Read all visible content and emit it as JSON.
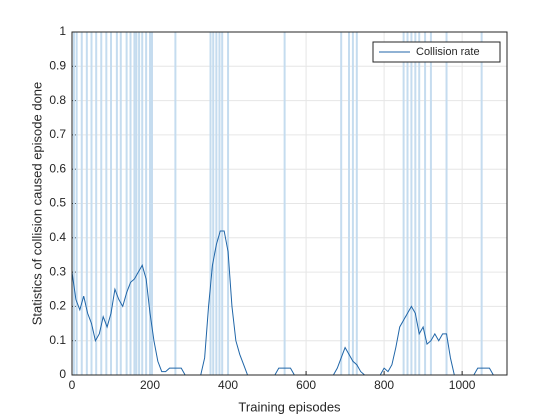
{
  "chart_data": {
    "type": "line",
    "xlabel": "Training episodes",
    "ylabel": "Statistics of collision caused episode done",
    "xlim": [
      0,
      1115
    ],
    "ylim": [
      0,
      1
    ],
    "xticks": [
      0,
      200,
      400,
      600,
      800,
      1000
    ],
    "yticks": [
      0,
      0.1,
      0.2,
      0.3,
      0.4,
      0.5,
      0.6,
      0.7,
      0.8,
      0.9,
      1
    ],
    "grid": true,
    "legend": "northeast",
    "series": [
      {
        "type": "stem",
        "color": "#c5dcef",
        "x": [
          5,
          12,
          25,
          38,
          50,
          62,
          75,
          88,
          100,
          115,
          125,
          140,
          150,
          160,
          165,
          172,
          180,
          190,
          200,
          205,
          265,
          355,
          362,
          370,
          378,
          385,
          400,
          545,
          690,
          710,
          720,
          730,
          850,
          860,
          870,
          880,
          890,
          905,
          920,
          960,
          1050
        ],
        "values": [
          1,
          1,
          1,
          1,
          1,
          1,
          1,
          1,
          1,
          1,
          1,
          1,
          1,
          1,
          1,
          1,
          1,
          1,
          1,
          1,
          1,
          1,
          1,
          1,
          1,
          1,
          1,
          1,
          1,
          1,
          1,
          1,
          1,
          1,
          1,
          1,
          1,
          1,
          1,
          1,
          1
        ]
      },
      {
        "type": "line",
        "name": "Collision rate",
        "color": "#2066a8",
        "x": [
          0,
          10,
          20,
          30,
          40,
          50,
          60,
          70,
          80,
          90,
          100,
          110,
          120,
          130,
          140,
          150,
          160,
          170,
          180,
          190,
          200,
          210,
          220,
          230,
          240,
          250,
          260,
          270,
          280,
          290,
          300,
          310,
          320,
          330,
          340,
          350,
          360,
          370,
          380,
          390,
          400,
          410,
          420,
          430,
          440,
          450,
          460,
          470,
          480,
          490,
          500,
          510,
          520,
          530,
          540,
          550,
          560,
          570,
          580,
          590,
          600,
          610,
          620,
          630,
          640,
          650,
          660,
          670,
          680,
          690,
          700,
          710,
          720,
          730,
          740,
          750,
          760,
          770,
          780,
          790,
          800,
          810,
          820,
          830,
          840,
          850,
          860,
          870,
          880,
          890,
          900,
          910,
          920,
          930,
          940,
          950,
          960,
          970,
          980,
          990,
          1000,
          1010,
          1020,
          1030,
          1040,
          1050,
          1060,
          1070,
          1080,
          1090,
          1100
        ],
        "values": [
          0.3,
          0.22,
          0.19,
          0.23,
          0.18,
          0.15,
          0.1,
          0.12,
          0.17,
          0.14,
          0.18,
          0.25,
          0.22,
          0.2,
          0.24,
          0.27,
          0.28,
          0.3,
          0.32,
          0.28,
          0.18,
          0.1,
          0.04,
          0.01,
          0.01,
          0.02,
          0.02,
          0.02,
          0.02,
          0,
          0,
          0,
          0,
          0,
          0.05,
          0.2,
          0.32,
          0.38,
          0.42,
          0.42,
          0.36,
          0.2,
          0.1,
          0.06,
          0.03,
          0,
          0,
          0,
          0,
          0,
          0,
          0,
          0,
          0.02,
          0.02,
          0.02,
          0.02,
          0,
          0,
          0,
          0,
          0,
          0,
          0,
          0,
          0,
          0,
          0,
          0.02,
          0.05,
          0.08,
          0.06,
          0.04,
          0.03,
          0.01,
          0,
          0,
          0,
          0,
          0,
          0.02,
          0.01,
          0.03,
          0.08,
          0.14,
          0.16,
          0.18,
          0.2,
          0.18,
          0.12,
          0.14,
          0.09,
          0.1,
          0.12,
          0.1,
          0.12,
          0.12,
          0.05,
          0,
          0,
          0,
          0,
          0,
          0,
          0.02,
          0.02,
          0.02,
          0.02,
          0,
          0,
          0
        ]
      }
    ]
  }
}
